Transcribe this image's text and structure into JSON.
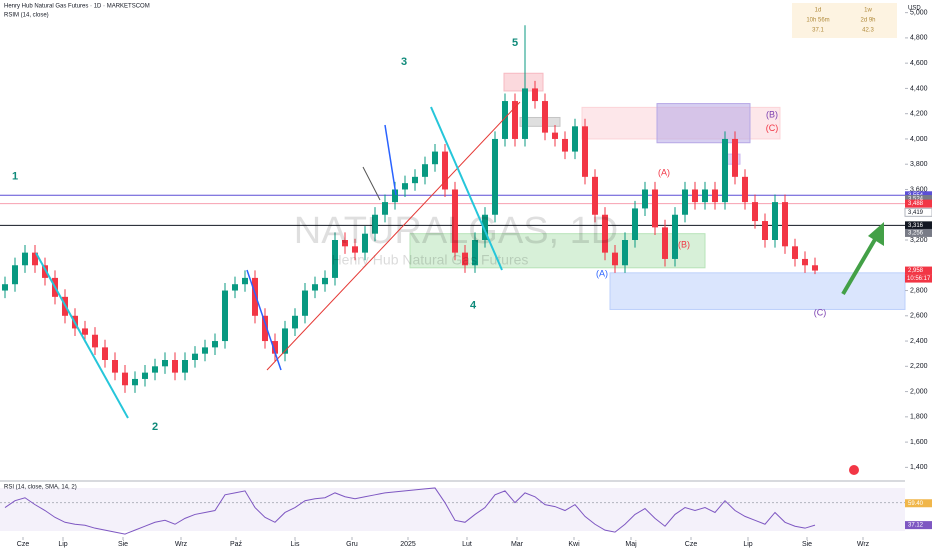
{
  "chart_data": {
    "type": "candlestick",
    "title": "Henry Hub Natural Gas Futures · 1D · MARKETSCOM",
    "indicator_label": "RSIM (14, close)",
    "watermark": "NATURALGAS, 1D",
    "watermark_sub": "Henry Hub Natural Gas Futures",
    "currency": "USD",
    "up_color": "#089981",
    "down_color": "#f23645",
    "open": [
      2.8,
      2.85,
      3.0,
      3.1,
      3.0,
      2.9,
      2.75,
      2.6,
      2.5,
      2.45,
      2.35,
      2.25,
      2.15,
      2.05,
      2.1,
      2.15,
      2.2,
      2.25,
      2.15,
      2.25,
      2.3,
      2.35,
      2.4,
      2.8,
      2.85,
      2.9,
      2.6,
      2.4,
      2.3,
      2.5,
      2.6,
      2.8,
      2.85,
      2.9,
      3.2,
      3.15,
      3.1,
      3.25,
      3.4,
      3.5,
      3.6,
      3.65,
      3.7,
      3.8,
      3.9,
      3.6,
      3.1,
      3.0,
      3.2,
      3.4,
      4.0,
      4.3,
      4.0,
      4.4,
      4.3,
      4.05,
      4.0,
      3.9,
      4.1,
      3.7,
      3.4,
      3.1,
      3.0,
      3.2,
      3.45,
      3.6,
      3.3,
      3.05,
      3.4,
      3.6,
      3.5,
      3.6,
      3.5,
      4.0,
      3.7,
      3.5,
      3.35,
      3.2,
      3.5,
      3.15,
      3.05,
      3.0
    ],
    "high": [
      2.91,
      3.06,
      3.16,
      3.16,
      3.06,
      2.96,
      2.81,
      2.66,
      2.56,
      2.51,
      2.41,
      2.31,
      2.21,
      2.16,
      2.21,
      2.26,
      2.31,
      2.31,
      2.31,
      2.36,
      2.41,
      2.46,
      2.86,
      2.91,
      2.96,
      2.96,
      2.66,
      2.46,
      2.56,
      2.66,
      2.86,
      2.91,
      2.96,
      3.26,
      3.26,
      3.21,
      3.31,
      3.46,
      3.56,
      3.66,
      3.71,
      3.76,
      3.86,
      3.96,
      3.96,
      3.66,
      3.16,
      3.26,
      3.46,
      4.06,
      4.36,
      4.36,
      4.9,
      4.46,
      4.36,
      4.11,
      4.06,
      4.16,
      4.16,
      3.76,
      3.46,
      3.16,
      3.26,
      3.51,
      3.66,
      3.66,
      3.36,
      3.46,
      3.66,
      3.66,
      3.66,
      3.66,
      4.06,
      4.06,
      3.76,
      3.56,
      3.41,
      3.56,
      3.56,
      3.21,
      3.11,
      3.06
    ],
    "low": [
      2.74,
      2.79,
      2.94,
      2.94,
      2.84,
      2.69,
      2.54,
      2.44,
      2.39,
      2.29,
      2.19,
      2.09,
      1.99,
      1.99,
      2.04,
      2.09,
      2.14,
      2.09,
      2.09,
      2.19,
      2.24,
      2.29,
      2.34,
      2.74,
      2.79,
      2.54,
      2.34,
      2.24,
      2.24,
      2.44,
      2.54,
      2.74,
      2.79,
      2.84,
      3.09,
      3.04,
      3.04,
      3.19,
      3.34,
      3.44,
      3.54,
      3.59,
      3.64,
      3.74,
      3.54,
      3.04,
      2.94,
      2.94,
      3.14,
      3.34,
      3.94,
      3.94,
      3.94,
      4.24,
      3.99,
      3.94,
      3.84,
      3.84,
      3.64,
      3.34,
      3.04,
      2.94,
      2.94,
      3.14,
      3.39,
      3.24,
      2.99,
      2.99,
      3.34,
      3.44,
      3.44,
      3.44,
      3.44,
      3.64,
      3.44,
      3.29,
      3.14,
      3.14,
      3.09,
      2.99,
      2.94,
      2.93
    ],
    "close": [
      2.85,
      3.0,
      3.1,
      3.0,
      2.9,
      2.75,
      2.6,
      2.5,
      2.45,
      2.35,
      2.25,
      2.15,
      2.05,
      2.1,
      2.15,
      2.2,
      2.25,
      2.15,
      2.25,
      2.3,
      2.35,
      2.4,
      2.8,
      2.85,
      2.9,
      2.6,
      2.4,
      2.3,
      2.5,
      2.6,
      2.8,
      2.85,
      2.9,
      3.2,
      3.15,
      3.1,
      3.25,
      3.4,
      3.5,
      3.6,
      3.65,
      3.7,
      3.8,
      3.9,
      3.6,
      3.1,
      3.0,
      3.2,
      3.4,
      4.0,
      4.3,
      4.0,
      4.4,
      4.3,
      4.05,
      4.0,
      3.9,
      4.1,
      3.7,
      3.4,
      3.1,
      3.0,
      3.2,
      3.45,
      3.6,
      3.3,
      3.05,
      3.4,
      3.6,
      3.5,
      3.6,
      3.5,
      4.0,
      3.7,
      3.5,
      3.35,
      3.2,
      3.5,
      3.15,
      3.05,
      3.0,
      2.958
    ],
    "xlim": [
      -0.5,
      90
    ],
    "xticks": [
      {
        "value": 1.8,
        "label": "Cze"
      },
      {
        "value": 5.8,
        "label": "Lip"
      },
      {
        "value": 11.8,
        "label": "Sie"
      },
      {
        "value": 17.6,
        "label": "Wrz"
      },
      {
        "value": 23.1,
        "label": "Paź"
      },
      {
        "value": 29,
        "label": "Lis"
      },
      {
        "value": 34.7,
        "label": "Gru"
      },
      {
        "value": 40.3,
        "label": "2025"
      },
      {
        "value": 46.2,
        "label": "Lut"
      },
      {
        "value": 51.2,
        "label": "Mar"
      },
      {
        "value": 56.9,
        "label": "Kwi"
      },
      {
        "value": 62.6,
        "label": "Maj"
      },
      {
        "value": 68.6,
        "label": "Cze"
      },
      {
        "value": 74.3,
        "label": "Lip"
      },
      {
        "value": 80.2,
        "label": "Sie"
      },
      {
        "value": 85.8,
        "label": "Wrz"
      }
    ],
    "ylim": [
      1.3,
      5.1
    ],
    "yticks": [
      {
        "value": 5.0,
        "label": "5,000"
      },
      {
        "value": 4.8,
        "label": "4,800"
      },
      {
        "value": 4.6,
        "label": "4,600"
      },
      {
        "value": 4.4,
        "label": "4,400"
      },
      {
        "value": 4.2,
        "label": "4,200"
      },
      {
        "value": 4.0,
        "label": "4,000"
      },
      {
        "value": 3.8,
        "label": "3,800"
      },
      {
        "value": 3.6,
        "label": "3,600"
      },
      {
        "value": 3.2,
        "label": "3,200"
      },
      {
        "value": 2.8,
        "label": "2,800"
      },
      {
        "value": 2.6,
        "label": "2,600"
      },
      {
        "value": 2.4,
        "label": "2,400"
      },
      {
        "value": 2.2,
        "label": "2,200"
      },
      {
        "value": 2.0,
        "label": "2,000"
      },
      {
        "value": 1.8,
        "label": "1,800"
      },
      {
        "value": 1.6,
        "label": "1,600"
      },
      {
        "value": 1.4,
        "label": "1,400"
      }
    ],
    "price_tags": [
      {
        "value": 3.554,
        "label": "3,554",
        "color": "#5b4fd6"
      },
      {
        "value": 3.524,
        "label": "3,524",
        "color": "#787b86"
      },
      {
        "value": 3.488,
        "label": "3,488",
        "color": "#f23645"
      },
      {
        "value": 3.419,
        "label": "3,419",
        "color": "#ffffff"
      },
      {
        "value": 3.316,
        "label": "3,316",
        "color": "#131722"
      },
      {
        "value": 3.256,
        "label": "3,256",
        "color": "#787b86"
      },
      {
        "value": 2.958,
        "label": "2,958",
        "color": "#f23645"
      }
    ],
    "countdown": "10:56:17",
    "levels": [
      {
        "value": 3.554,
        "color": "#5b4fd6"
      },
      {
        "value": 3.488,
        "color": "#f7a1b0"
      },
      {
        "value": 3.316,
        "color": "#131722"
      }
    ],
    "zones": [
      {
        "low": 2.98,
        "high": 3.25,
        "from": 40.5,
        "to": 70,
        "color": "#b7e3b8"
      },
      {
        "low": 2.65,
        "high": 2.94,
        "from": 60.5,
        "to": 90,
        "color": "#bcd0fb"
      },
      {
        "low": 4.0,
        "high": 4.25,
        "from": 57.7,
        "to": 77.5,
        "color": "#fcd4d8"
      },
      {
        "low": 3.97,
        "high": 4.28,
        "from": 65.2,
        "to": 74.5,
        "color": "#b6a8e6"
      },
      {
        "low": 4.38,
        "high": 4.52,
        "from": 49.9,
        "to": 53.8,
        "color": "#f7b9c1"
      },
      {
        "low": 4.1,
        "high": 4.17,
        "from": 51.5,
        "to": 55.5,
        "color": "#c4c4c4"
      },
      {
        "low": 3.8,
        "high": 3.88,
        "from": 71.9,
        "to": 73.5,
        "color": "#c9b6ef"
      }
    ],
    "waves": [
      {
        "label": "1",
        "x": 1.0,
        "price": 3.7,
        "color": "#0f8a7a"
      },
      {
        "label": "2",
        "x": 15.0,
        "price": 1.72,
        "color": "#0f8a7a"
      },
      {
        "label": "3",
        "x": 39.9,
        "price": 4.61,
        "color": "#0f8a7a"
      },
      {
        "label": "4",
        "x": 46.8,
        "price": 2.68,
        "color": "#0f8a7a"
      },
      {
        "label": "5",
        "x": 51.0,
        "price": 4.76,
        "color": "#0f8a7a"
      },
      {
        "label": "(A)",
        "x": 59.7,
        "price": 2.93,
        "color": "#2962ff"
      },
      {
        "label": "(B)",
        "x": 67.9,
        "price": 3.16,
        "color": "#f23645"
      },
      {
        "label": "(C)",
        "x": 81.5,
        "price": 2.62,
        "color": "#7b3fb0"
      },
      {
        "label": "(A)",
        "x": 65.9,
        "price": 3.73,
        "color": "#f23645"
      },
      {
        "label": "(B)",
        "x": 76.7,
        "price": 4.19,
        "color": "#7b3fb0"
      },
      {
        "label": "(C)",
        "x": 76.7,
        "price": 4.08,
        "color": "#f23645"
      }
    ],
    "timer_box": [
      [
        "1d",
        "10h 56m",
        "37.1"
      ],
      [
        "1w",
        "2d 9h",
        "42.3"
      ]
    ],
    "rsi": {
      "title": "RSI (14, close, SMA, 14, 2)",
      "color": "#7e57c2",
      "values": [
        55,
        62,
        65,
        58,
        52,
        45,
        40,
        38,
        37,
        34,
        32,
        30,
        28,
        32,
        36,
        40,
        42,
        38,
        44,
        48,
        50,
        52,
        68,
        70,
        72,
        55,
        45,
        40,
        50,
        55,
        62,
        64,
        65,
        70,
        66,
        64,
        66,
        68,
        70,
        71,
        72,
        73,
        74,
        75,
        60,
        42,
        40,
        48,
        55,
        68,
        72,
        60,
        70,
        66,
        58,
        56,
        52,
        58,
        46,
        38,
        32,
        30,
        38,
        48,
        54,
        44,
        36,
        48,
        55,
        52,
        55,
        50,
        62,
        52,
        46,
        42,
        38,
        50,
        40,
        36,
        34,
        37.12
      ],
      "ylim": [
        25,
        78
      ],
      "yticks": [
        {
          "value": 60,
          "label": "60.00"
        }
      ],
      "tags": [
        {
          "value": 59.4,
          "label": "59.40",
          "color": "#f0b64a"
        },
        {
          "value": 37.12,
          "label": "37.12",
          "color": "#7e57c2"
        }
      ]
    }
  }
}
